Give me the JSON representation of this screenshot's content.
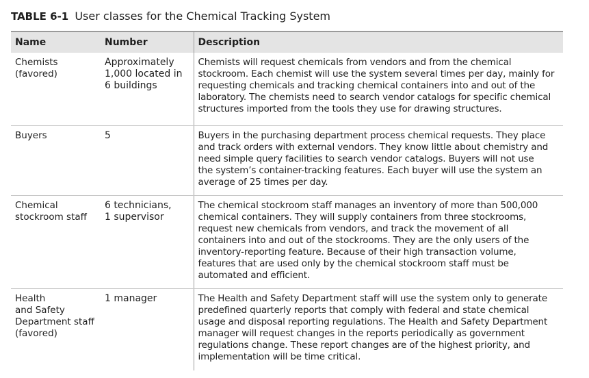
{
  "caption": {
    "label": "TABLE 6-1",
    "title": "User classes for the Chemical Tracking System"
  },
  "table": {
    "headers": [
      "Name",
      "Number",
      "Description"
    ],
    "rows": [
      {
        "name": "Chemists\n(favored)",
        "number": "Approximately\n1,000 located in\n6 buildings",
        "description": "Chemists will request chemicals from vendors and from the chemical\nstockroom. Each chemist will use the system several times per day, mainly for\nrequesting chemicals and tracking chemical containers into and out of the\nlaboratory. The chemists need to search vendor catalogs for specific chemical\nstructures imported from the tools they use for drawing structures."
      },
      {
        "name": "Buyers",
        "number": "5",
        "description": "Buyers in the purchasing department process chemical requests. They place\nand track orders with external vendors. They know little about chemistry and\nneed simple query facilities to search vendor catalogs. Buyers will not use\nthe system’s container-tracking features. Each buyer will use the system an\naverage of 25 times per day."
      },
      {
        "name": "Chemical\nstockroom staff",
        "number": "6 technicians,\n1 supervisor",
        "description": "The chemical stockroom staff manages an inventory of more than 500,000\nchemical containers. They will supply containers from three stockrooms,\nrequest new chemicals from vendors, and track the movement of all\ncontainers into and out of the stockrooms. They are the only users of the\ninventory-reporting feature. Because of their high transaction volume,\nfeatures that are used only by the chemical stockroom staff must be\nautomated and efficient."
      },
      {
        "name": "Health\nand Safety\nDepartment staff\n(favored)",
        "number": "1 manager",
        "description": "The Health and Safety Department staff will use the system only to generate\npredefined quarterly reports that comply with federal and state chemical\nusage and disposal reporting regulations. The Health and Safety Department\nmanager will request changes in the reports periodically as government\nregulations change. These report changes are of the highest priority, and\nimplementation will be time critical."
      }
    ]
  }
}
